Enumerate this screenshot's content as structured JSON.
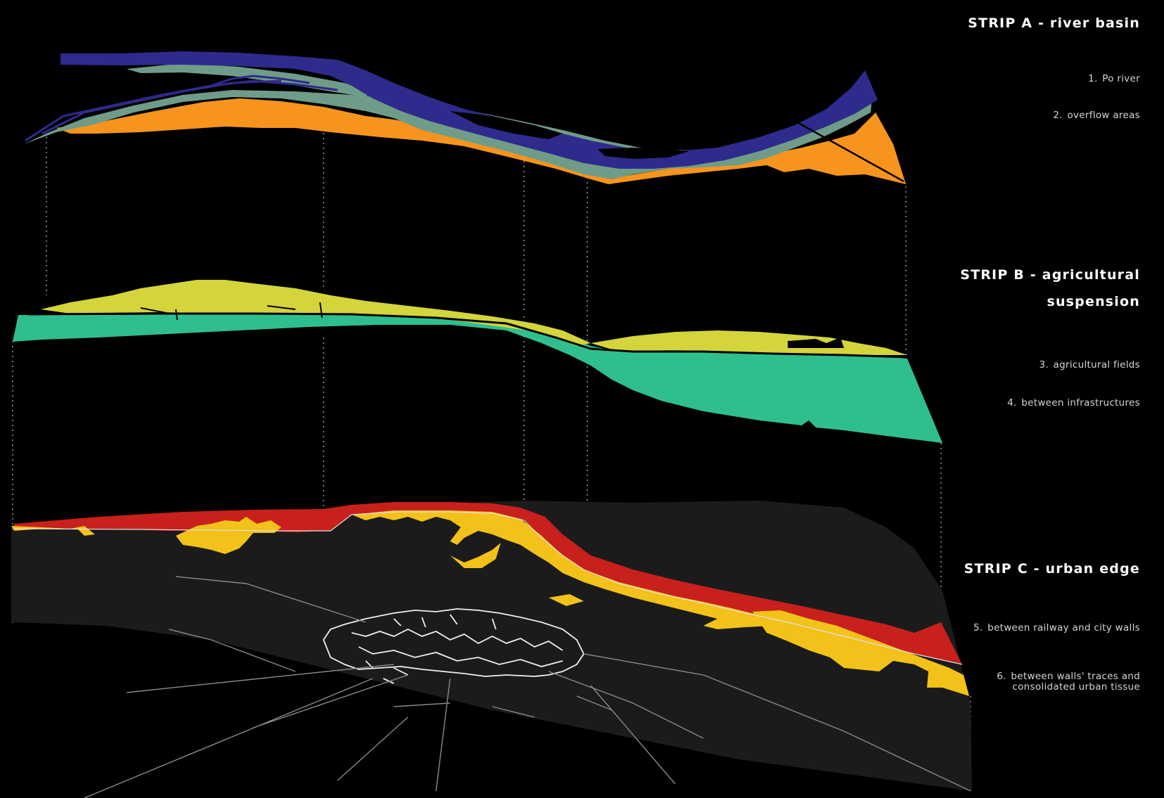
{
  "strips": [
    {
      "title": "STRIP A - river basin",
      "items": [
        {
          "num": "1.",
          "label": "Po river",
          "color": "#2e2b8c"
        },
        {
          "num": "2.",
          "label": "overflow areas",
          "color": "#f7941d"
        }
      ]
    },
    {
      "title": "STRIP B - agricultural suspension",
      "items": [
        {
          "num": "3.",
          "label": "agricultural fields",
          "color": "#d4d43b"
        },
        {
          "num": "4.",
          "label": "between infrastructures",
          "color": "#2fbf8f"
        }
      ]
    },
    {
      "title": "STRIP C - urban edge",
      "items": [
        {
          "num": "5.",
          "label": "between railway and city walls",
          "color": "#c8201c"
        },
        {
          "num": "6.",
          "label": "between walls' traces and consolidated urban tissue",
          "color": "#f2c21a"
        }
      ]
    }
  ],
  "colors": {
    "background": "#000000",
    "river": "#2e2b8c",
    "overflow": "#f7941d",
    "riverbank": "#6f9c88",
    "agricultural": "#d4d43b",
    "infrastructure": "#2fbf8f",
    "railway": "#c8201c",
    "urban": "#f2c21a",
    "ground": "#1b1b1b",
    "roads": "#8a8a8a"
  }
}
